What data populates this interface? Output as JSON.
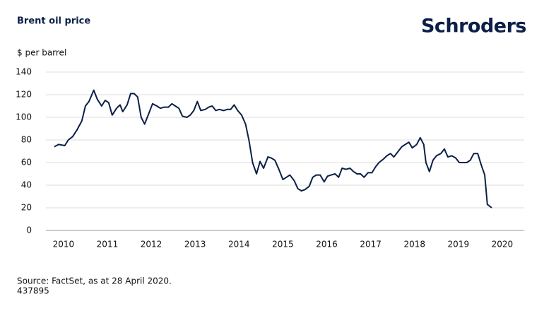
{
  "chart_data": {
    "type": "line",
    "title": "Brent oil price",
    "brand": "Schroders",
    "y_label": "$ per barrel",
    "source": "Source: FactSet, as at 28 April 2020.",
    "code": "437895",
    "xlim": [
      2009.6,
      2020.5
    ],
    "xticks": [
      2010,
      2011,
      2012,
      2013,
      2014,
      2015,
      2016,
      2017,
      2018,
      2019,
      2020
    ],
    "ylim": [
      0,
      140
    ],
    "yticks": [
      0,
      20,
      40,
      60,
      80,
      100,
      120,
      140
    ],
    "grid": true,
    "x": [
      2009.79,
      2009.89,
      2010.03,
      2010.11,
      2010.21,
      2010.31,
      2010.42,
      2010.5,
      2010.58,
      2010.69,
      2010.77,
      2010.87,
      2010.95,
      2011.03,
      2011.11,
      2011.21,
      2011.29,
      2011.35,
      2011.45,
      2011.53,
      2011.61,
      2011.69,
      2011.77,
      2011.85,
      2011.95,
      2012.03,
      2012.13,
      2012.21,
      2012.29,
      2012.39,
      2012.47,
      2012.55,
      2012.63,
      2012.71,
      2012.81,
      2012.89,
      2012.97,
      2013.05,
      2013.13,
      2013.23,
      2013.31,
      2013.39,
      2013.47,
      2013.55,
      2013.65,
      2013.73,
      2013.81,
      2013.89,
      2013.97,
      2014.06,
      2014.15,
      2014.23,
      2014.31,
      2014.4,
      2014.48,
      2014.56,
      2014.66,
      2014.74,
      2014.82,
      2014.92,
      2015.0,
      2015.08,
      2015.16,
      2015.26,
      2015.34,
      2015.42,
      2015.5,
      2015.6,
      2015.68,
      2015.76,
      2015.85,
      2015.94,
      2016.02,
      2016.1,
      2016.19,
      2016.27,
      2016.35,
      2016.44,
      2016.53,
      2016.61,
      2016.69,
      2016.77,
      2016.85,
      2016.94,
      2017.03,
      2017.11,
      2017.19,
      2017.29,
      2017.37,
      2017.45,
      2017.53,
      2017.61,
      2017.71,
      2017.79,
      2017.87,
      2017.95,
      2018.05,
      2018.13,
      2018.21,
      2018.26,
      2018.34,
      2018.42,
      2018.5,
      2018.6,
      2018.68,
      2018.76,
      2018.85,
      2018.94,
      2019.02,
      2019.11,
      2019.19,
      2019.27,
      2019.35,
      2019.44,
      2019.52,
      2019.6,
      2019.66,
      2019.76
    ],
    "series": [
      {
        "color": "#0b1f48",
        "values": [
          74,
          76,
          75,
          80,
          83,
          89,
          97,
          110,
          114,
          124,
          116,
          110,
          115,
          113,
          102,
          108,
          111,
          105,
          111,
          121,
          121,
          118,
          100,
          94,
          104,
          112,
          110,
          108,
          109,
          109,
          112,
          110,
          108,
          101,
          100,
          102,
          106,
          114,
          106,
          107,
          109,
          110,
          106,
          107,
          106,
          107,
          107,
          111,
          106,
          102,
          94,
          79,
          60,
          50,
          61,
          55,
          65,
          64,
          62,
          53,
          45,
          47,
          49,
          44,
          37,
          35,
          36,
          39,
          47,
          49,
          49,
          43,
          48,
          49,
          50,
          47,
          55,
          54,
          55,
          52,
          50,
          50,
          47,
          51,
          51,
          56,
          60,
          63,
          66,
          68,
          65,
          69,
          74,
          76,
          78,
          73,
          76,
          82,
          76,
          60,
          52,
          62,
          66,
          68,
          72,
          65,
          66,
          64,
          60,
          60,
          60,
          62,
          68,
          68,
          58,
          49,
          23,
          20
        ]
      }
    ]
  }
}
